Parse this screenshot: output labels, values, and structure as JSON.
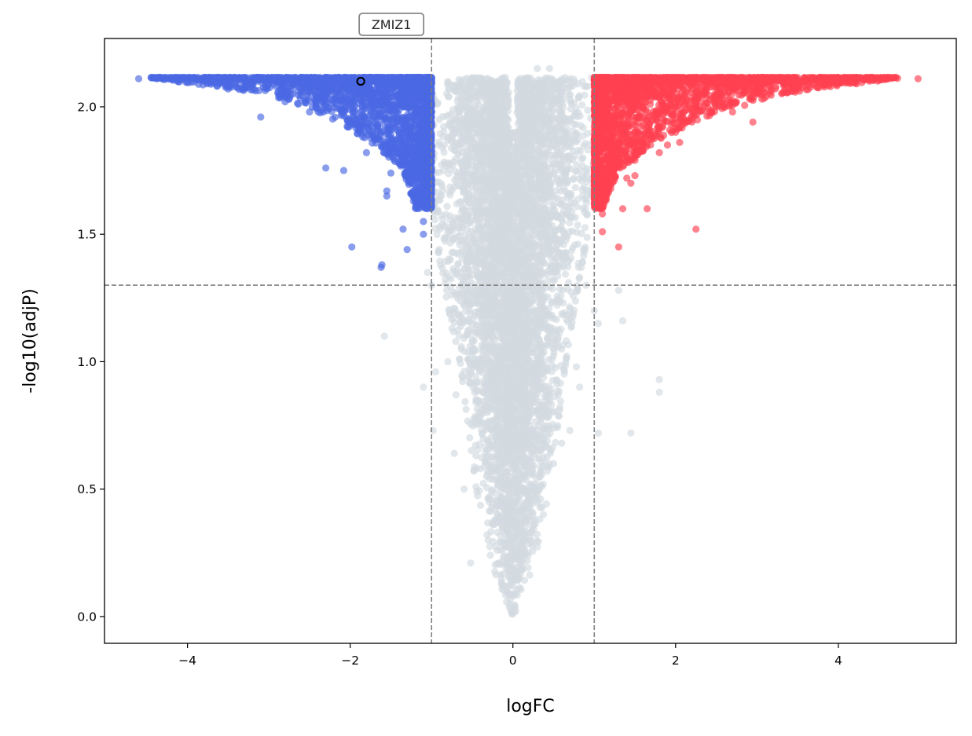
{
  "chart_data": {
    "type": "scatter",
    "title": "",
    "xlabel": "logFC",
    "ylabel": "-log10(adjP)",
    "xlim": [
      -5.02,
      5.45
    ],
    "ylim": [
      -0.105,
      2.268
    ],
    "xticks": [
      -4,
      -2,
      0,
      2,
      4
    ],
    "xtick_labels": [
      "−4",
      "−2",
      "0",
      "2",
      "4"
    ],
    "yticks": [
      0.0,
      0.5,
      1.0,
      1.5,
      2.0
    ],
    "ytick_labels": [
      "0.0",
      "0.5",
      "1.0",
      "1.5",
      "2.0"
    ],
    "grid": false,
    "thresholds": {
      "logFC": [
        -1,
        1
      ],
      "neg_log10_adjP": 1.3
    },
    "colors": {
      "down": "#4c68e4",
      "up": "#ff4152",
      "ns": "#d2dae1",
      "threshold": "#808080"
    },
    "series": [
      {
        "name": "ns",
        "envelope": [
          [
            0.0,
            -0.02,
            0.02
          ],
          [
            0.2,
            -0.25,
            0.25
          ],
          [
            0.5,
            -0.45,
            0.45
          ],
          [
            1.0,
            -0.65,
            0.65
          ],
          [
            1.3,
            -0.85,
            0.8
          ],
          [
            1.5,
            -0.95,
            0.92
          ],
          [
            1.8,
            -1.0,
            1.0
          ],
          [
            2.115,
            -1.0,
            1.0
          ]
        ],
        "points": [
          [
            -0.52,
            0.21
          ],
          [
            -1.1,
            0.9
          ],
          [
            -0.98,
            0.73
          ],
          [
            -0.95,
            0.96
          ],
          [
            -0.72,
            0.64
          ],
          [
            -0.7,
            0.87
          ],
          [
            -0.8,
            1.0
          ],
          [
            -1.58,
            1.1
          ],
          [
            1.05,
            0.72
          ],
          [
            1.45,
            0.72
          ],
          [
            1.8,
            0.93
          ],
          [
            1.8,
            0.88
          ],
          [
            1.35,
            1.16
          ],
          [
            1.3,
            1.28
          ],
          [
            0.82,
            0.9
          ],
          [
            0.78,
            0.98
          ],
          [
            0.6,
            0.68
          ],
          [
            0.7,
            0.73
          ],
          [
            -1.0,
            1.3
          ],
          [
            -1.05,
            1.35
          ],
          [
            1.0,
            1.2
          ],
          [
            1.05,
            1.15
          ],
          [
            0.3,
            2.15
          ],
          [
            0.45,
            2.15
          ],
          [
            -0.6,
            0.5
          ],
          [
            0.5,
            0.6
          ],
          [
            -0.75,
            1.13
          ],
          [
            0.9,
            1.3
          ]
        ]
      },
      {
        "name": "down",
        "envelope": [
          [
            1.6,
            -1.2,
            -1.0
          ],
          [
            1.75,
            -1.35,
            -1.0
          ],
          [
            1.85,
            -1.7,
            -1.0
          ],
          [
            1.95,
            -2.2,
            -1.0
          ],
          [
            2.05,
            -3.0,
            -1.0
          ],
          [
            2.115,
            -4.5,
            -1.0
          ]
        ],
        "points": [
          [
            -4.6,
            2.11
          ],
          [
            -3.5,
            2.07
          ],
          [
            -3.1,
            1.96
          ],
          [
            -2.8,
            2.02
          ],
          [
            -2.5,
            1.98
          ],
          [
            -2.3,
            1.76
          ],
          [
            -2.08,
            1.75
          ],
          [
            -1.98,
            1.45
          ],
          [
            -1.62,
            1.37
          ],
          [
            -1.61,
            1.38
          ],
          [
            -1.55,
            1.67
          ],
          [
            -1.55,
            1.65
          ],
          [
            -1.35,
            1.52
          ],
          [
            -1.3,
            1.44
          ],
          [
            -1.2,
            1.63
          ],
          [
            -1.25,
            1.7
          ],
          [
            -1.8,
            1.82
          ],
          [
            -1.7,
            1.87
          ],
          [
            -1.45,
            1.84
          ],
          [
            -1.1,
            1.55
          ],
          [
            -1.1,
            1.5
          ],
          [
            -1.05,
            1.6
          ],
          [
            -1.5,
            1.74
          ],
          [
            -1.3,
            1.78
          ],
          [
            -2.2,
            2.03
          ],
          [
            -2.0,
            1.94
          ],
          [
            -1.9,
            1.91
          ],
          [
            -1.4,
            1.9
          ],
          [
            -1.2,
            1.93
          ],
          [
            -1.1,
            1.8
          ],
          [
            -1.15,
            1.75
          ],
          [
            -1.25,
            1.66
          ]
        ]
      },
      {
        "name": "up",
        "envelope": [
          [
            1.6,
            1.0,
            1.1
          ],
          [
            1.75,
            1.0,
            1.3
          ],
          [
            1.85,
            1.0,
            1.7
          ],
          [
            1.95,
            1.0,
            2.3
          ],
          [
            2.05,
            1.0,
            3.3
          ],
          [
            2.115,
            1.0,
            4.8
          ]
        ],
        "points": [
          [
            4.98,
            2.11
          ],
          [
            1.3,
            1.45
          ],
          [
            2.25,
            1.52
          ],
          [
            1.65,
            1.6
          ],
          [
            1.35,
            1.6
          ],
          [
            1.1,
            1.58
          ],
          [
            1.1,
            1.51
          ],
          [
            1.05,
            1.66
          ],
          [
            1.4,
            1.72
          ],
          [
            1.5,
            1.73
          ],
          [
            1.45,
            1.7
          ],
          [
            1.2,
            1.77
          ],
          [
            1.8,
            1.82
          ],
          [
            1.9,
            1.85
          ],
          [
            2.05,
            1.86
          ],
          [
            1.65,
            1.85
          ],
          [
            2.95,
            1.94
          ],
          [
            2.7,
            1.98
          ],
          [
            2.6,
            2.01
          ],
          [
            2.35,
            2.0
          ],
          [
            2.2,
            1.94
          ],
          [
            1.3,
            1.78
          ],
          [
            1.5,
            1.79
          ],
          [
            1.0,
            1.73
          ]
        ]
      }
    ],
    "annotations": [
      {
        "label": "ZMIZ1",
        "x": -1.87,
        "y": 2.1
      }
    ]
  }
}
